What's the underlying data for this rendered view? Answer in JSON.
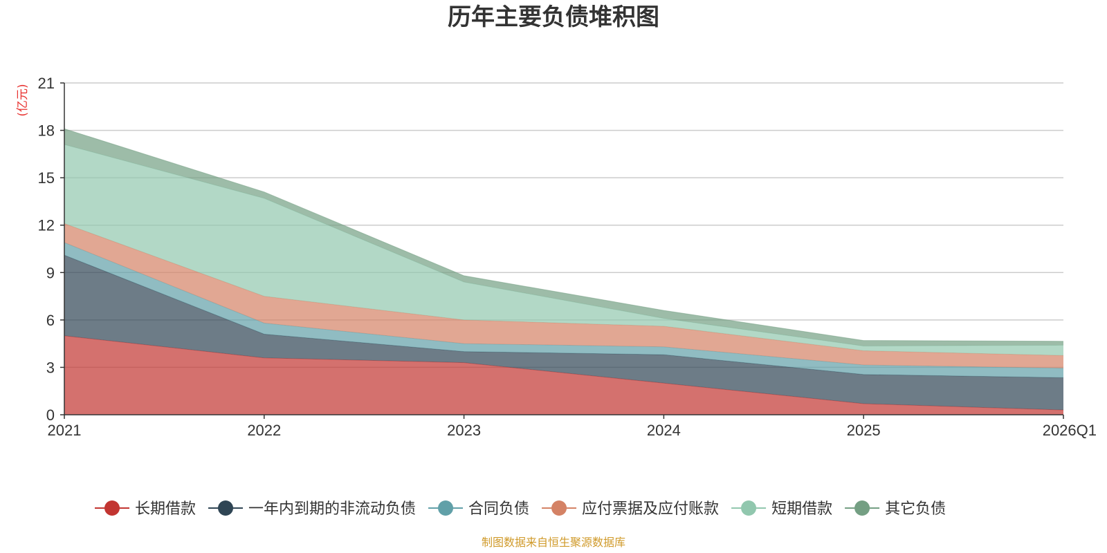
{
  "chart_data": {
    "type": "area",
    "stacked": true,
    "title": "历年主要负债堆积图",
    "unit_label": "(亿元)",
    "xlabel": "",
    "ylabel": "(亿元)",
    "categories": [
      "2021",
      "2022",
      "2023",
      "2024",
      "2025",
      "2026Q1"
    ],
    "ylim": [
      0,
      21
    ],
    "yticks": [
      0,
      3,
      6,
      9,
      12,
      15,
      18,
      21
    ],
    "grid": true,
    "legend_position": "bottom",
    "series": [
      {
        "name": "长期借款",
        "color": "#c23531",
        "values": [
          5.0,
          3.6,
          3.3,
          2.0,
          0.7,
          0.3
        ]
      },
      {
        "name": "一年内到期的非流动负债",
        "color": "#2f4554",
        "values": [
          5.1,
          1.5,
          0.7,
          1.8,
          1.85,
          2.05
        ]
      },
      {
        "name": "合同负债",
        "color": "#61a0a8",
        "values": [
          0.8,
          0.7,
          0.5,
          0.5,
          0.6,
          0.6
        ]
      },
      {
        "name": "应付票据及应付账款",
        "color": "#d48265",
        "values": [
          1.2,
          1.7,
          1.5,
          1.3,
          0.9,
          0.8
        ]
      },
      {
        "name": "短期借款",
        "color": "#91c7ae",
        "values": [
          5.0,
          6.2,
          2.4,
          0.5,
          0.3,
          0.65
        ]
      },
      {
        "name": "其它负债",
        "color": "#749f83",
        "values": [
          1.0,
          0.4,
          0.4,
          0.5,
          0.35,
          0.25
        ]
      }
    ]
  },
  "source_text": "制图数据来自恒生聚源数据库",
  "colors": {
    "unit": "#e8312f",
    "source": "#d09a2a",
    "axis": "#333333",
    "grid": "#cccccc"
  }
}
